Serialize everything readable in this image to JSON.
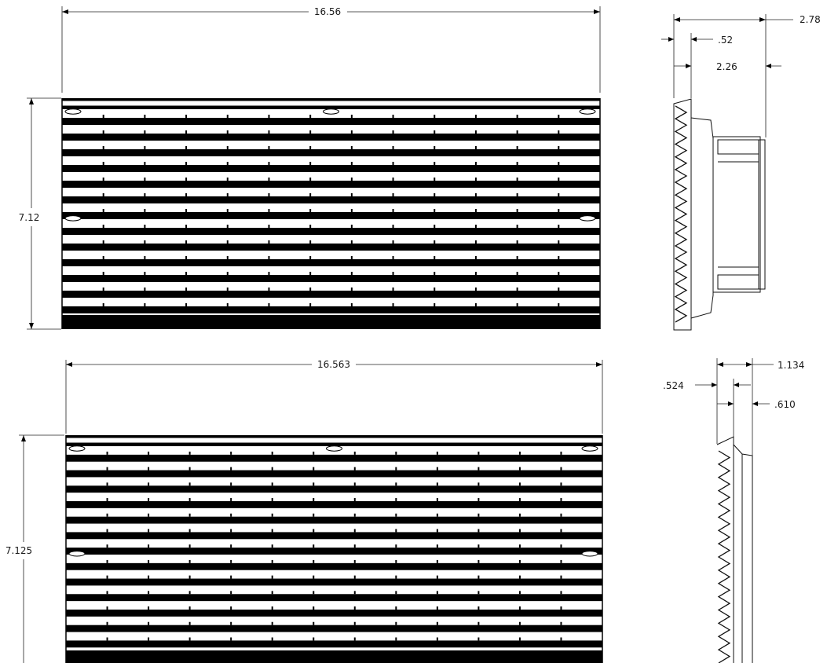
{
  "views": {
    "upper_front": {
      "width_label": "16.56",
      "height_label": "7.12"
    },
    "upper_side": {
      "dim_overall": "2.78",
      "dim_flange": ".52",
      "dim_body": "2.26"
    },
    "lower_front": {
      "width_label": "16.563",
      "height_label": "7.125"
    },
    "lower_side": {
      "dim_overall": "1.134",
      "dim_flange": ".524",
      "dim_body": ".610"
    }
  },
  "colors": {
    "line": "#111111",
    "fill": "#000000",
    "background": "#ffffff"
  }
}
